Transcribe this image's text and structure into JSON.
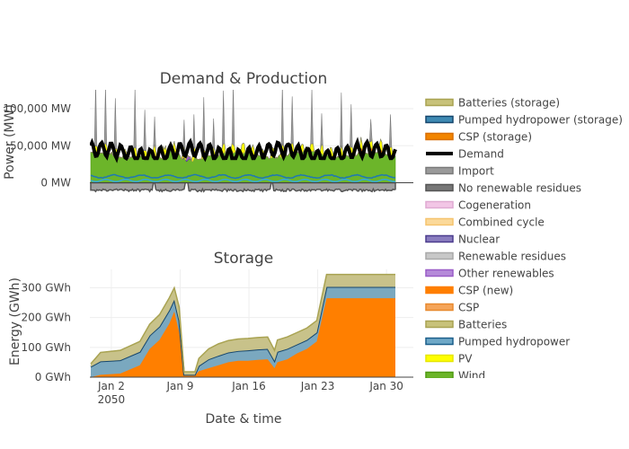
{
  "chart_data": [
    {
      "type": "area",
      "title": "Demand & Production",
      "xlabel": "",
      "ylabel": "Power (MW)",
      "ylim": [
        -12000,
        122000
      ],
      "y_ticks": [
        {
          "value": 0,
          "label": "0 MW"
        },
        {
          "value": 50000,
          "label": "50,000 MW"
        },
        {
          "value": 100000,
          "label": "100,000 MW"
        }
      ],
      "x_range_days": [
        1,
        32
      ],
      "grid": true,
      "stacking": "positive stack above zero, negative stack below zero",
      "series_summary": [
        {
          "name": "Wind",
          "role": "stacked positive",
          "typical_mw": 38000
        },
        {
          "name": "Renewable residues",
          "role": "stacked positive",
          "typical_mw": 3000
        },
        {
          "name": "Other renewables",
          "role": "stacked positive",
          "typical_mw": 1000
        },
        {
          "name": "PV",
          "role": "stacked positive, daily peaks",
          "peak_mw": 15000
        },
        {
          "name": "CSP (new)",
          "role": "stacked positive, occasional",
          "peak_mw": 8000
        },
        {
          "name": "Pumped hydropower (storage)",
          "role": "line",
          "typical_mw": 8000
        },
        {
          "name": "Batteries (storage)",
          "role": "line",
          "typical_mw": 3000
        },
        {
          "name": "No renewable residues",
          "role": "stacked negative",
          "typical_mw": -12000
        },
        {
          "name": "Demand",
          "role": "line",
          "range_mw": [
            33000,
            62000
          ]
        }
      ]
    },
    {
      "type": "area",
      "title": "Storage",
      "xlabel": "Date & time",
      "ylabel": "Energy (GWh)",
      "ylim": [
        0,
        350
      ],
      "y_ticks": [
        {
          "value": 0,
          "label": "0 GWh"
        },
        {
          "value": 100,
          "label": "100 GWh"
        },
        {
          "value": 200,
          "label": "200 GWh"
        },
        {
          "value": 300,
          "label": "300 GWh"
        }
      ],
      "x_ticks": [
        {
          "day": 2,
          "label": "Jan 2",
          "sublabel": "2050"
        },
        {
          "day": 9,
          "label": "Jan 9"
        },
        {
          "day": 16,
          "label": "Jan 16"
        },
        {
          "day": 23,
          "label": "Jan 23"
        },
        {
          "day": 30,
          "label": "Jan 30"
        }
      ],
      "grid": true,
      "x": [
        1,
        2,
        4,
        6,
        7,
        8,
        9,
        9.5,
        10,
        10.5,
        11,
        11.6,
        12,
        13,
        14,
        15,
        16,
        17,
        18,
        19,
        19.7,
        20,
        21,
        22,
        23,
        24,
        25,
        26,
        27,
        28,
        29,
        30,
        31,
        32
      ],
      "series": [
        {
          "name": "CSP (new)",
          "values": [
            0,
            8,
            12,
            40,
            95,
            125,
            180,
            220,
            150,
            5,
            5,
            5,
            20,
            30,
            40,
            50,
            55,
            55,
            58,
            60,
            30,
            50,
            60,
            80,
            95,
            120,
            265,
            265,
            265,
            265,
            265,
            265,
            265,
            265
          ]
        },
        {
          "name": "Pumped hydropower",
          "values": [
            35,
            45,
            45,
            45,
            45,
            45,
            45,
            40,
            40,
            3,
            3,
            3,
            18,
            30,
            32,
            33,
            33,
            35,
            35,
            35,
            25,
            35,
            35,
            30,
            30,
            30,
            38,
            38,
            38,
            38,
            38,
            38,
            38,
            38
          ]
        },
        {
          "name": "Batteries",
          "values": [
            10,
            30,
            33,
            35,
            38,
            40,
            42,
            40,
            45,
            10,
            10,
            10,
            25,
            35,
            40,
            40,
            40,
            40,
            40,
            40,
            35,
            40,
            40,
            40,
            40,
            40,
            42,
            42,
            42,
            42,
            42,
            42,
            42,
            42
          ]
        }
      ]
    }
  ],
  "legend": {
    "placement": "right",
    "entries": [
      {
        "label": "Batteries (storage)",
        "type": "area",
        "fill": "#c8c27a",
        "line": "#a9a352"
      },
      {
        "label": "Pumped hydropower (storage)",
        "type": "area",
        "fill": "#3f8ab3",
        "line": "#16466d"
      },
      {
        "label": "CSP (storage)",
        "type": "area",
        "fill": "#f28500",
        "line": "#d96f00"
      },
      {
        "label": "Demand",
        "type": "line",
        "line": "#000000"
      },
      {
        "label": "Import",
        "type": "area",
        "fill": "#9a9a9a",
        "line": "#7a7a7a"
      },
      {
        "label": "No renewable residues",
        "type": "area",
        "fill": "#777777",
        "line": "#555555"
      },
      {
        "label": "Cogeneration",
        "type": "area",
        "fill": "#f2c6e6",
        "line": "#dfaad2"
      },
      {
        "label": "Combined cycle",
        "type": "area",
        "fill": "#fbd99a",
        "line": "#f5c46e"
      },
      {
        "label": "Nuclear",
        "type": "area",
        "fill": "#8a7dbf",
        "line": "#4b3d8e"
      },
      {
        "label": "Renewable residues",
        "type": "area",
        "fill": "#c8c8c8",
        "line": "#a9a9a9"
      },
      {
        "label": "Other renewables",
        "type": "area",
        "fill": "#b58ad9",
        "line": "#9a5cc7"
      },
      {
        "label": "CSP (new)",
        "type": "area",
        "fill": "#ff7f00",
        "line": "#ff7f00"
      },
      {
        "label": "CSP",
        "type": "area",
        "fill": "#f5a55a",
        "line": "#e8892e"
      },
      {
        "label": "Batteries",
        "type": "area",
        "fill": "#c8c27a",
        "line": "#a9a352"
      },
      {
        "label": "Pumped hydropower",
        "type": "area",
        "fill": "#6fa8c7",
        "line": "#1b5f8a"
      },
      {
        "label": "PV",
        "type": "area",
        "fill": "#ffff00",
        "line": "#e6e600"
      },
      {
        "label": "Wind",
        "type": "area",
        "fill": "#6cb52a",
        "line": "#4f9a12"
      }
    ]
  },
  "colors": {
    "wind": "#6cb52a",
    "pv": "#ffff00",
    "csp_new": "#ff7f00",
    "other_renewables": "#9a5cc7",
    "nuclear": "#4b3d8e",
    "pumped_line": "#1f78b4",
    "batteries_line": "#33a9e0",
    "negative_fill": "#a0a0a0",
    "negative_line": "#555555",
    "demand": "#000000",
    "storage_csp": "#ff7f00",
    "storage_pumped": "#7aa8bf",
    "storage_batteries": "#c8c28a"
  }
}
